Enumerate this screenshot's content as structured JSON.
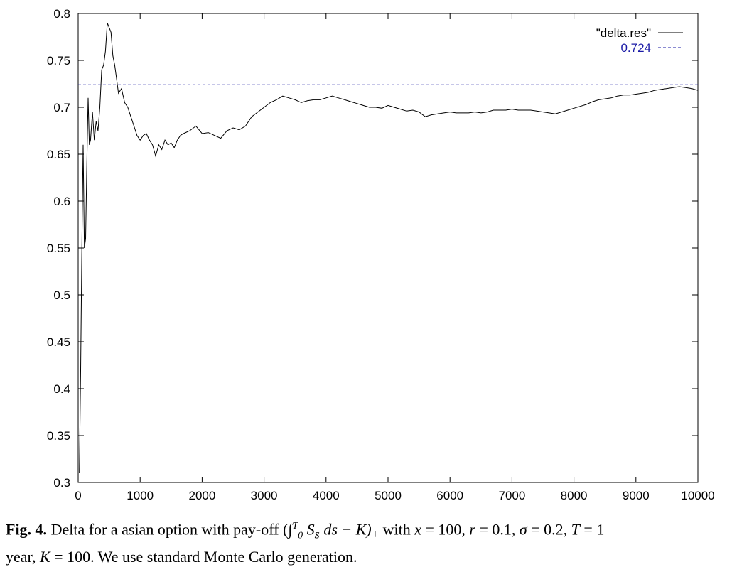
{
  "chart_data": {
    "type": "line",
    "x_ticks": [
      "0",
      "1000",
      "2000",
      "3000",
      "4000",
      "5000",
      "6000",
      "7000",
      "8000",
      "9000",
      "10000"
    ],
    "y_ticks": [
      "0.3",
      "0.35",
      "0.4",
      "0.45",
      "0.5",
      "0.55",
      "0.6",
      "0.65",
      "0.7",
      "0.75",
      "0.8"
    ],
    "xlim": [
      0,
      10000
    ],
    "ylim": [
      0.3,
      0.8
    ],
    "grid": false,
    "legend_position": "top-right",
    "series": [
      {
        "name": "\"delta.res\"",
        "style": "solid",
        "color": "#000000",
        "x": [
          20,
          40,
          60,
          80,
          100,
          120,
          140,
          160,
          180,
          200,
          230,
          260,
          290,
          320,
          350,
          380,
          410,
          440,
          470,
          500,
          530,
          560,
          590,
          620,
          650,
          700,
          750,
          800,
          850,
          900,
          950,
          1000,
          1050,
          1100,
          1150,
          1200,
          1250,
          1300,
          1350,
          1400,
          1450,
          1500,
          1550,
          1600,
          1650,
          1700,
          1800,
          1900,
          2000,
          2100,
          2200,
          2300,
          2400,
          2500,
          2600,
          2700,
          2800,
          2900,
          3000,
          3100,
          3200,
          3300,
          3400,
          3500,
          3600,
          3700,
          3800,
          3900,
          4000,
          4100,
          4200,
          4300,
          4400,
          4500,
          4600,
          4700,
          4800,
          4900,
          5000,
          5100,
          5200,
          5300,
          5400,
          5500,
          5600,
          5700,
          5800,
          5900,
          6000,
          6100,
          6200,
          6300,
          6400,
          6500,
          6600,
          6700,
          6800,
          6900,
          7000,
          7100,
          7200,
          7300,
          7400,
          7500,
          7600,
          7700,
          7800,
          7900,
          8000,
          8100,
          8200,
          8300,
          8400,
          8500,
          8600,
          8700,
          8800,
          8900,
          9000,
          9100,
          9200,
          9300,
          9400,
          9500,
          9600,
          9700,
          9800,
          9900,
          10000
        ],
        "values": [
          0.31,
          0.42,
          0.55,
          0.66,
          0.55,
          0.56,
          0.64,
          0.71,
          0.66,
          0.665,
          0.695,
          0.665,
          0.685,
          0.675,
          0.7,
          0.74,
          0.745,
          0.76,
          0.79,
          0.785,
          0.78,
          0.755,
          0.745,
          0.73,
          0.715,
          0.72,
          0.705,
          0.7,
          0.69,
          0.68,
          0.67,
          0.665,
          0.67,
          0.672,
          0.665,
          0.66,
          0.648,
          0.66,
          0.655,
          0.665,
          0.66,
          0.662,
          0.657,
          0.665,
          0.67,
          0.672,
          0.675,
          0.68,
          0.672,
          0.673,
          0.67,
          0.667,
          0.675,
          0.678,
          0.676,
          0.68,
          0.69,
          0.695,
          0.7,
          0.705,
          0.708,
          0.712,
          0.71,
          0.708,
          0.705,
          0.707,
          0.708,
          0.708,
          0.71,
          0.712,
          0.71,
          0.708,
          0.706,
          0.704,
          0.702,
          0.7,
          0.7,
          0.699,
          0.702,
          0.7,
          0.698,
          0.696,
          0.697,
          0.695,
          0.69,
          0.692,
          0.693,
          0.694,
          0.695,
          0.694,
          0.694,
          0.694,
          0.695,
          0.694,
          0.695,
          0.697,
          0.697,
          0.697,
          0.698,
          0.697,
          0.697,
          0.697,
          0.696,
          0.695,
          0.694,
          0.693,
          0.695,
          0.697,
          0.699,
          0.701,
          0.703,
          0.706,
          0.708,
          0.709,
          0.71,
          0.712,
          0.713,
          0.713,
          0.714,
          0.715,
          0.716,
          0.718,
          0.719,
          0.72,
          0.721,
          0.722,
          0.721,
          0.72,
          0.718
        ]
      },
      {
        "name": "0.724",
        "style": "dashed",
        "color": "#1a1aa6",
        "x": [
          0,
          10000
        ],
        "values": [
          0.724,
          0.724
        ]
      }
    ]
  },
  "caption": {
    "fig_label": "Fig. 4.",
    "text_1": " Delta for a asian option with pay-off (",
    "int_upper": "T",
    "int_lower": "0",
    "integrand": "S",
    "integrand_sub": "s",
    "text_2": " ds − K)",
    "plus_sub": "+",
    "text_3": " with ",
    "x_var": "x",
    "text_4": " = 100, ",
    "r_var": "r",
    "text_5": " = 0.1, ",
    "sigma_var": "σ",
    "text_6": " = 0.2, ",
    "t_var": "T",
    "text_7": " = 1",
    "line2": "year, ",
    "k_var": "K",
    "text_8": " = 100. We use standard Monte Carlo generation."
  }
}
